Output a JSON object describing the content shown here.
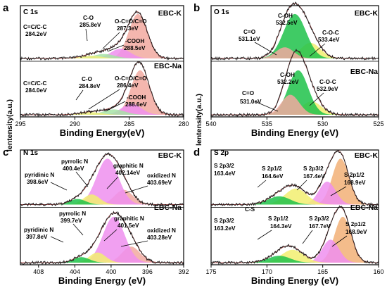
{
  "figure": {
    "y_axis_label": "lentensity(a.u.)"
  },
  "chart_data": [
    {
      "panel": "a",
      "type": "area",
      "core_level": "C 1s",
      "xlabel": "Binding Energy(eV)",
      "xlim": [
        295,
        280
      ],
      "ticks": [
        "280",
        "285",
        "290",
        "295"
      ],
      "samples": [
        {
          "name": "EBC-K",
          "components": [
            {
              "label": "C=C/C-C",
              "energy_label": "284.2eV",
              "center": 284.2,
              "height": 1.0,
              "width": 0.85,
              "color": "#f2a9a0"
            },
            {
              "label": "C-O",
              "energy_label": "285.8eV",
              "center": 285.8,
              "height": 0.22,
              "width": 0.9,
              "color": "#ee8fee"
            },
            {
              "label": "O-C=O/C=O",
              "energy_label": "287.3eV",
              "center": 287.3,
              "height": 0.1,
              "width": 1.0,
              "color": "#a6e3a6"
            },
            {
              "label": "-COOH",
              "energy_label": "288.5eV",
              "center": 288.5,
              "height": 0.06,
              "width": 1.0,
              "color": "#ecec7a"
            }
          ]
        },
        {
          "name": "EBC-Na",
          "components": [
            {
              "label": "C=C/C-C",
              "energy_label": "284.0eV",
              "center": 284.0,
              "height": 1.0,
              "width": 0.85,
              "color": "#f2a9a0"
            },
            {
              "label": "C-O",
              "energy_label": "284.8eV",
              "center": 284.8,
              "height": 0.25,
              "width": 0.9,
              "color": "#ee8fee"
            },
            {
              "label": "O-C=O/C=O",
              "energy_label": "286.4eV",
              "center": 286.4,
              "height": 0.12,
              "width": 1.0,
              "color": "#a6e3a6"
            },
            {
              "label": "-COOH",
              "energy_label": "288.6eV",
              "center": 288.6,
              "height": 0.06,
              "width": 1.0,
              "color": "#ecec7a"
            }
          ]
        }
      ]
    },
    {
      "panel": "b",
      "type": "area",
      "core_level": "O 1s",
      "xlabel": "Binding Energy (eV)",
      "xlim": [
        540,
        525
      ],
      "ticks": [
        "525",
        "530",
        "535",
        "540"
      ],
      "samples": [
        {
          "name": "EBC-K",
          "components": [
            {
              "label": "C=O",
              "energy_label": "531.1eV",
              "center": 531.1,
              "height": 0.35,
              "width": 0.9,
              "color": "#f2ef70"
            },
            {
              "label": "C-OH",
              "energy_label": "532.5eV",
              "center": 532.5,
              "height": 1.0,
              "width": 1.0,
              "color": "#1ec24a"
            },
            {
              "label": "C-O-C",
              "energy_label": "533.4eV",
              "center": 533.4,
              "height": 0.25,
              "width": 0.8,
              "color": "#f2a9a0"
            }
          ]
        },
        {
          "name": "EBC-Na",
          "components": [
            {
              "label": "C=O",
              "energy_label": "531.0eV",
              "center": 531.0,
              "height": 0.3,
              "width": 0.9,
              "color": "#f2ef70"
            },
            {
              "label": "C-OH",
              "energy_label": "532.2eV",
              "center": 532.2,
              "height": 1.0,
              "width": 0.9,
              "color": "#1ec24a"
            },
            {
              "label": "C-O-C",
              "energy_label": "532.9eV",
              "center": 532.9,
              "height": 0.45,
              "width": 0.8,
              "color": "#f2a9a0"
            }
          ]
        }
      ]
    },
    {
      "panel": "c",
      "type": "area",
      "core_level": "N 1s",
      "xlabel": "Binding Energy (eV)",
      "xlim": [
        410,
        392
      ],
      "ticks": [
        "392",
        "396",
        "400",
        "404",
        "408"
      ],
      "samples": [
        {
          "name": "EBC-K",
          "components": [
            {
              "label": "pyridinic N",
              "energy_label": "398.6eV",
              "center": 398.6,
              "height": 0.32,
              "width": 1.0,
              "color": "#f2a9a0"
            },
            {
              "label": "pyrrolic N",
              "energy_label": "400.4eV",
              "center": 400.4,
              "height": 1.0,
              "width": 1.2,
              "color": "#ee8fee"
            },
            {
              "label": "graphitic N",
              "energy_label": "402.14eV",
              "center": 402.14,
              "height": 0.22,
              "width": 0.9,
              "color": "#f2ef70"
            },
            {
              "label": "oxidized N",
              "energy_label": "403.69eV",
              "center": 403.69,
              "height": 0.12,
              "width": 0.9,
              "color": "#1ec24a"
            }
          ]
        },
        {
          "name": "EBC-Na",
          "components": [
            {
              "label": "pyridinic N",
              "energy_label": "397.8eV",
              "center": 397.8,
              "height": 0.35,
              "width": 1.0,
              "color": "#f2a9a0"
            },
            {
              "label": "pyrrolic N",
              "energy_label": "399.7eV",
              "center": 399.7,
              "height": 1.0,
              "width": 1.2,
              "color": "#ee8fee"
            },
            {
              "label": "graphitic N",
              "energy_label": "401.5eV",
              "center": 401.5,
              "height": 0.22,
              "width": 0.9,
              "color": "#f2ef70"
            },
            {
              "label": "oxidized N",
              "energy_label": "403.28eV",
              "center": 403.28,
              "height": 0.12,
              "width": 0.9,
              "color": "#1ec24a"
            }
          ]
        }
      ]
    },
    {
      "panel": "d",
      "type": "area",
      "core_level": "S 2p",
      "xlabel": "Binding Energy (eV)",
      "xlim": [
        175,
        160
      ],
      "ticks": [
        "160",
        "165",
        "170",
        "175"
      ],
      "samples": [
        {
          "name": "EBC-K",
          "components": [
            {
              "label": "S 2p3/2",
              "energy_label": "163.4eV",
              "center": 163.4,
              "height": 1.0,
              "width": 0.75,
              "color": "#f2b077"
            },
            {
              "label": "S 2p1/2",
              "energy_label": "164.6eV",
              "center": 164.6,
              "height": 0.5,
              "width": 0.75,
              "color": "#ee8fee"
            },
            {
              "label": "S 2p3/2",
              "energy_label": "167.4eV",
              "center": 167.4,
              "height": 0.35,
              "width": 1.0,
              "color": "#f2ef70"
            },
            {
              "label": "S 2p1/2",
              "energy_label": "168.9eV",
              "center": 168.9,
              "height": 0.18,
              "width": 1.0,
              "color": "#1ec24a"
            }
          ]
        },
        {
          "name": "EBC-Na",
          "components": [
            {
              "label": "S 2p3/2",
              "energy_label": "163.2eV",
              "center": 163.2,
              "height": 1.0,
              "width": 0.75,
              "color": "#f2b077"
            },
            {
              "label": "S 2p1/2",
              "energy_label": "164.3eV",
              "center": 164.3,
              "height": 0.5,
              "width": 0.75,
              "color": "#ee8fee"
            },
            {
              "label": "S 2p3/2",
              "energy_label": "167.7eV",
              "center": 167.7,
              "height": 0.28,
              "width": 1.0,
              "color": "#f2ef70"
            },
            {
              "label": "S 2p1/2",
              "energy_label": "168.9eV",
              "center": 168.9,
              "height": 0.15,
              "width": 1.0,
              "color": "#1ec24a"
            }
          ]
        }
      ],
      "annotations": [
        "C-S"
      ]
    }
  ]
}
